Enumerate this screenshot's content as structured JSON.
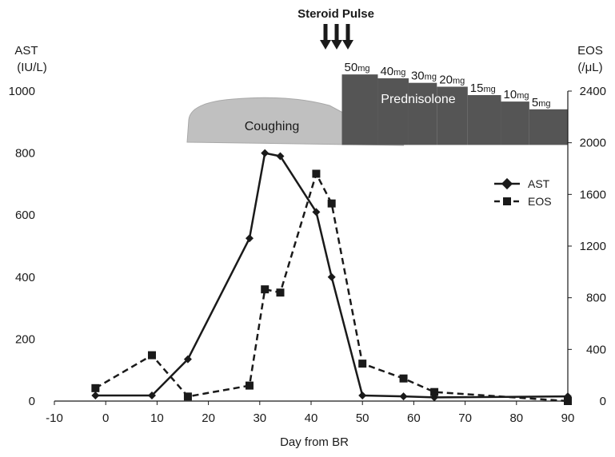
{
  "chart_data": {
    "type": "line",
    "title": "",
    "xlabel": "Day from BR",
    "x_ticks": [
      -10,
      0,
      10,
      20,
      30,
      40,
      50,
      60,
      70,
      80,
      90
    ],
    "xlim": [
      -10,
      90
    ],
    "y_left": {
      "label_line1": "AST",
      "label_line2": "(IU/L)",
      "ticks": [
        0,
        200,
        400,
        600,
        800,
        1000
      ],
      "ylim": [
        0,
        1000
      ]
    },
    "y_right": {
      "label_line1": "EOS",
      "label_line2": "(/μL)",
      "ticks": [
        0,
        400,
        800,
        1200,
        1600,
        2000,
        2400
      ],
      "ylim": [
        0,
        2400
      ]
    },
    "series": [
      {
        "name": "AST",
        "axis": "left",
        "style": "solid",
        "marker": "diamond",
        "color": "#1a1a1a",
        "x": [
          -2,
          9,
          16,
          28,
          31,
          34,
          41,
          44,
          50,
          58,
          64,
          90
        ],
        "y": [
          18,
          18,
          135,
          525,
          800,
          790,
          610,
          400,
          18,
          15,
          12,
          15
        ]
      },
      {
        "name": "EOS",
        "axis": "right",
        "style": "dashed",
        "marker": "square",
        "color": "#1a1a1a",
        "x": [
          -2,
          9,
          16,
          28,
          31,
          34,
          41,
          44,
          50,
          58,
          64,
          90
        ],
        "y": [
          100,
          355,
          35,
          120,
          865,
          840,
          1760,
          1530,
          290,
          175,
          70,
          0
        ]
      }
    ],
    "annotations": {
      "steroid_pulse": "Steroid Pulse",
      "coughing": "Coughing",
      "prednisolone": "Prednisolone",
      "doses": [
        {
          "value": "50",
          "unit": "mg",
          "start": 46,
          "end": 53,
          "level": 2300
        },
        {
          "value": "40",
          "unit": "mg",
          "start": 53,
          "end": 59,
          "level": 2270
        },
        {
          "value": "30",
          "unit": "mg",
          "start": 59,
          "end": 64.5,
          "level": 2235
        },
        {
          "value": "20",
          "unit": "mg",
          "start": 64.5,
          "end": 70.5,
          "level": 2205
        },
        {
          "value": "15",
          "unit": "mg",
          "start": 70.5,
          "end": 77,
          "level": 2140
        },
        {
          "value": "10",
          "unit": "mg",
          "start": 77,
          "end": 82.5,
          "level": 2090
        },
        {
          "value": "5",
          "unit": "mg",
          "start": 82.5,
          "end": 90,
          "level": 2030
        }
      ]
    },
    "legend_position": "right",
    "grid": false
  }
}
